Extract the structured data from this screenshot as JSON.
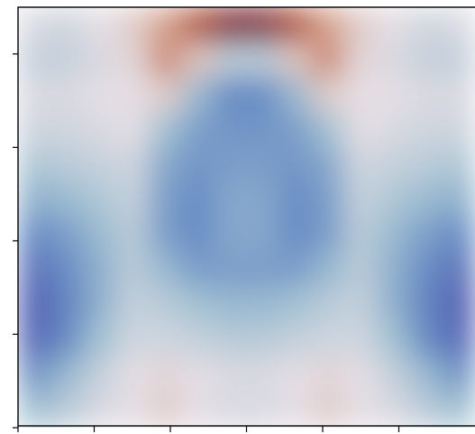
{
  "chart_data": {
    "type": "contour",
    "xlim": [
      0,
      6
    ],
    "ylim": [
      0,
      4.5
    ],
    "xticks": [
      0,
      1,
      2,
      3,
      4,
      5
    ],
    "yticks": [
      0,
      1,
      2,
      3,
      4
    ],
    "z": [
      [
        -0.05,
        -0.1,
        0.0,
        0.1,
        0.35,
        0.7,
        0.9,
        0.9,
        0.7,
        0.35,
        0.1,
        0.0,
        -0.1,
        -0.05
      ],
      [
        -0.15,
        -0.15,
        -0.05,
        0.05,
        0.45,
        0.15,
        -0.2,
        -0.2,
        0.15,
        0.45,
        0.05,
        -0.05,
        -0.15,
        -0.15
      ],
      [
        -0.05,
        -0.05,
        0.0,
        0.0,
        0.1,
        -0.35,
        -0.6,
        -0.6,
        -0.35,
        0.1,
        0.0,
        0.0,
        -0.05,
        -0.05
      ],
      [
        -0.1,
        -0.1,
        -0.05,
        0.0,
        -0.3,
        -0.5,
        -0.55,
        -0.55,
        -0.5,
        -0.3,
        0.0,
        -0.05,
        -0.1,
        -0.1
      ],
      [
        -0.25,
        -0.2,
        -0.15,
        -0.1,
        -0.45,
        -0.55,
        -0.5,
        -0.5,
        -0.55,
        -0.45,
        -0.1,
        -0.15,
        -0.2,
        -0.25
      ],
      [
        -0.4,
        -0.35,
        -0.25,
        -0.15,
        -0.5,
        -0.6,
        -0.45,
        -0.45,
        -0.6,
        -0.5,
        -0.15,
        -0.25,
        -0.35,
        -0.4
      ],
      [
        -0.6,
        -0.5,
        -0.35,
        -0.2,
        -0.5,
        -0.6,
        -0.45,
        -0.45,
        -0.6,
        -0.5,
        -0.2,
        -0.35,
        -0.5,
        -0.6
      ],
      [
        -0.75,
        -0.6,
        -0.4,
        -0.2,
        -0.35,
        -0.5,
        -0.5,
        -0.5,
        -0.5,
        -0.35,
        -0.2,
        -0.4,
        -0.6,
        -0.75
      ],
      [
        -0.85,
        -0.65,
        -0.4,
        -0.15,
        -0.2,
        -0.3,
        -0.35,
        -0.35,
        -0.3,
        -0.2,
        -0.15,
        -0.4,
        -0.65,
        -0.85
      ],
      [
        -0.8,
        -0.6,
        -0.3,
        -0.1,
        -0.1,
        -0.15,
        -0.2,
        -0.2,
        -0.15,
        -0.1,
        -0.1,
        -0.3,
        -0.6,
        -0.8
      ],
      [
        -0.55,
        -0.35,
        -0.15,
        0.0,
        0.05,
        0.0,
        -0.05,
        -0.05,
        0.0,
        0.05,
        0.0,
        -0.15,
        -0.35,
        -0.55
      ],
      [
        -0.3,
        -0.2,
        -0.05,
        0.0,
        0.1,
        0.0,
        -0.05,
        -0.05,
        0.0,
        0.1,
        0.0,
        -0.05,
        -0.2,
        -0.3
      ]
    ]
  }
}
